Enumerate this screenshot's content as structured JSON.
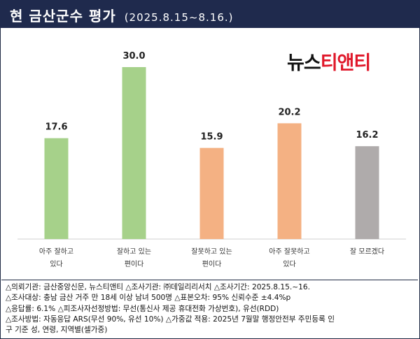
{
  "header": {
    "title": "현 금산군수 평가",
    "date": "(2025.8.15~8.16.)"
  },
  "logo": {
    "text_a": "뉴스",
    "text_b": "티앤티"
  },
  "chart_data": {
    "type": "bar",
    "title": "현 금산군수 평가",
    "categories": [
      [
        "아주 잘하고",
        "있다"
      ],
      [
        "잘하고 있는",
        "편이다"
      ],
      [
        "잘못하고 있는",
        "편이다"
      ],
      [
        "아주 잘못하고",
        "있다"
      ],
      [
        "잘 모르겠다"
      ]
    ],
    "values": [
      17.6,
      30.0,
      15.9,
      20.2,
      16.2
    ],
    "value_labels": [
      "17.6",
      "30.0",
      "15.9",
      "20.2",
      "16.2"
    ],
    "colors": [
      "#a6d18a",
      "#a6d18a",
      "#f4b183",
      "#f4b183",
      "#afabab"
    ],
    "ylim": [
      0,
      30
    ],
    "xlabel": "",
    "ylabel": "",
    "grid": false,
    "legend": "none"
  },
  "footer": {
    "lines": [
      "△의뢰기관: 금산중앙신문, 뉴스티앤티 △조사기관: ㈜데일리리서치 △조사기간: 2025.8.15.~16.",
      "△조사대상: 충남 금산 거주 만 18세 이상 남녀 500명 △표본오차: 95% 신뢰수준 ±4.4%p",
      "△응답률: 6.1% △피조사자선정방법: 무선(통신사 제공 휴대전화 가상번호), 유선(RDD)",
      "△조사방법: 자동응답 ARS(무선 90%, 유선 10%) △가중값 적용: 2025년 7월말 행정안전부 주민등록 인",
      "구 기준 성, 연령, 지역별(셀가중)"
    ]
  }
}
